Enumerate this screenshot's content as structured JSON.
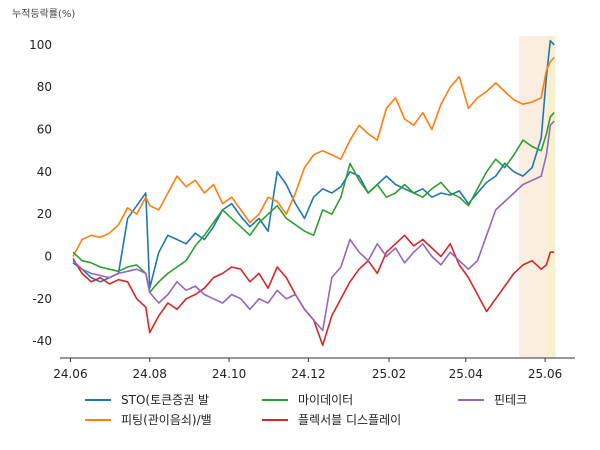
{
  "chart_data": {
    "type": "line",
    "title": "",
    "unit_label": "누적등락률(%)",
    "xlabel": "",
    "ylabel": "",
    "x_ticks": [
      "24.06",
      "24.08",
      "24.10",
      "24.12",
      "25.02",
      "25.04",
      "25.06"
    ],
    "y_ticks": [
      -40,
      -20,
      0,
      20,
      40,
      60,
      80,
      100
    ],
    "ylim": [
      -48,
      108
    ],
    "xlim": [
      "2024-05-24",
      "2025-06-24"
    ],
    "grid": false,
    "legend_position": "bottom",
    "shaded_regions": [
      {
        "start": "2025-05-12",
        "end": "2025-06-02",
        "color": "#fbeee0"
      },
      {
        "start": "2025-06-02",
        "end": "2025-06-09",
        "color": "#f7f0cf"
      }
    ],
    "series": [
      {
        "name": "STO(토큰증권 발",
        "color": "#1f77b4",
        "points": [
          [
            "2024-06-03",
            -3
          ],
          [
            "2024-06-10",
            -6
          ],
          [
            "2024-06-17",
            -10
          ],
          [
            "2024-06-24",
            -12
          ],
          [
            "2024-07-01",
            -10
          ],
          [
            "2024-07-08",
            -8
          ],
          [
            "2024-07-15",
            18
          ],
          [
            "2024-07-22",
            24
          ],
          [
            "2024-07-29",
            30
          ],
          [
            "2024-08-01",
            -15
          ],
          [
            "2024-08-08",
            2
          ],
          [
            "2024-08-15",
            10
          ],
          [
            "2024-08-22",
            8
          ],
          [
            "2024-08-29",
            6
          ],
          [
            "2024-09-05",
            11
          ],
          [
            "2024-09-12",
            8
          ],
          [
            "2024-09-19",
            14
          ],
          [
            "2024-09-26",
            22
          ],
          [
            "2024-10-03",
            25
          ],
          [
            "2024-10-10",
            19
          ],
          [
            "2024-10-17",
            14
          ],
          [
            "2024-10-24",
            18
          ],
          [
            "2024-10-31",
            12
          ],
          [
            "2024-11-07",
            40
          ],
          [
            "2024-11-14",
            34
          ],
          [
            "2024-11-21",
            25
          ],
          [
            "2024-11-28",
            18
          ],
          [
            "2024-12-05",
            28
          ],
          [
            "2024-12-12",
            32
          ],
          [
            "2024-12-19",
            30
          ],
          [
            "2024-12-26",
            33
          ],
          [
            "2025-01-02",
            40
          ],
          [
            "2025-01-09",
            38
          ],
          [
            "2025-01-16",
            30
          ],
          [
            "2025-01-23",
            34
          ],
          [
            "2025-01-30",
            38
          ],
          [
            "2025-02-06",
            34
          ],
          [
            "2025-02-13",
            32
          ],
          [
            "2025-02-20",
            30
          ],
          [
            "2025-02-27",
            32
          ],
          [
            "2025-03-06",
            28
          ],
          [
            "2025-03-13",
            30
          ],
          [
            "2025-03-20",
            29
          ],
          [
            "2025-03-27",
            31
          ],
          [
            "2025-04-03",
            25
          ],
          [
            "2025-04-10",
            30
          ],
          [
            "2025-04-17",
            35
          ],
          [
            "2025-04-24",
            38
          ],
          [
            "2025-05-01",
            44
          ],
          [
            "2025-05-08",
            40
          ],
          [
            "2025-05-15",
            38
          ],
          [
            "2025-05-22",
            42
          ],
          [
            "2025-05-29",
            56
          ],
          [
            "2025-06-02",
            85
          ],
          [
            "2025-06-05",
            102
          ],
          [
            "2025-06-08",
            100
          ]
        ]
      },
      {
        "name": "피팅(관이음쇠)/밸",
        "color": "#ff7f0e",
        "points": [
          [
            "2024-06-03",
            0
          ],
          [
            "2024-06-10",
            8
          ],
          [
            "2024-06-17",
            10
          ],
          [
            "2024-06-24",
            9
          ],
          [
            "2024-07-01",
            11
          ],
          [
            "2024-07-08",
            15
          ],
          [
            "2024-07-15",
            23
          ],
          [
            "2024-07-22",
            20
          ],
          [
            "2024-07-29",
            28
          ],
          [
            "2024-08-01",
            24
          ],
          [
            "2024-08-08",
            22
          ],
          [
            "2024-08-15",
            30
          ],
          [
            "2024-08-22",
            38
          ],
          [
            "2024-08-29",
            33
          ],
          [
            "2024-09-05",
            36
          ],
          [
            "2024-09-12",
            30
          ],
          [
            "2024-09-19",
            34
          ],
          [
            "2024-09-26",
            25
          ],
          [
            "2024-10-03",
            28
          ],
          [
            "2024-10-10",
            22
          ],
          [
            "2024-10-17",
            16
          ],
          [
            "2024-10-24",
            20
          ],
          [
            "2024-10-31",
            28
          ],
          [
            "2024-11-07",
            26
          ],
          [
            "2024-11-14",
            20
          ],
          [
            "2024-11-21",
            30
          ],
          [
            "2024-11-28",
            42
          ],
          [
            "2024-12-05",
            48
          ],
          [
            "2024-12-12",
            50
          ],
          [
            "2024-12-19",
            48
          ],
          [
            "2024-12-26",
            46
          ],
          [
            "2025-01-02",
            55
          ],
          [
            "2025-01-09",
            62
          ],
          [
            "2025-01-16",
            58
          ],
          [
            "2025-01-23",
            55
          ],
          [
            "2025-01-30",
            70
          ],
          [
            "2025-02-06",
            75
          ],
          [
            "2025-02-13",
            65
          ],
          [
            "2025-02-20",
            62
          ],
          [
            "2025-02-27",
            68
          ],
          [
            "2025-03-06",
            60
          ],
          [
            "2025-03-13",
            72
          ],
          [
            "2025-03-20",
            80
          ],
          [
            "2025-03-27",
            85
          ],
          [
            "2025-04-03",
            70
          ],
          [
            "2025-04-10",
            75
          ],
          [
            "2025-04-17",
            78
          ],
          [
            "2025-04-24",
            82
          ],
          [
            "2025-05-01",
            78
          ],
          [
            "2025-05-08",
            74
          ],
          [
            "2025-05-15",
            72
          ],
          [
            "2025-05-22",
            73
          ],
          [
            "2025-05-29",
            75
          ],
          [
            "2025-06-02",
            88
          ],
          [
            "2025-06-05",
            92
          ],
          [
            "2025-06-08",
            94
          ]
        ]
      },
      {
        "name": "마이데이터",
        "color": "#2ca02c",
        "points": [
          [
            "2024-06-03",
            2
          ],
          [
            "2024-06-10",
            -2
          ],
          [
            "2024-06-17",
            -3
          ],
          [
            "2024-06-24",
            -5
          ],
          [
            "2024-07-01",
            -6
          ],
          [
            "2024-07-08",
            -7
          ],
          [
            "2024-07-15",
            -5
          ],
          [
            "2024-07-22",
            -4
          ],
          [
            "2024-07-29",
            -8
          ],
          [
            "2024-08-01",
            -17
          ],
          [
            "2024-08-08",
            -12
          ],
          [
            "2024-08-15",
            -8
          ],
          [
            "2024-08-22",
            -5
          ],
          [
            "2024-08-29",
            -2
          ],
          [
            "2024-09-05",
            5
          ],
          [
            "2024-09-12",
            10
          ],
          [
            "2024-09-19",
            16
          ],
          [
            "2024-09-26",
            22
          ],
          [
            "2024-10-03",
            18
          ],
          [
            "2024-10-10",
            14
          ],
          [
            "2024-10-17",
            10
          ],
          [
            "2024-10-24",
            16
          ],
          [
            "2024-10-31",
            20
          ],
          [
            "2024-11-07",
            24
          ],
          [
            "2024-11-14",
            18
          ],
          [
            "2024-11-21",
            15
          ],
          [
            "2024-11-28",
            12
          ],
          [
            "2024-12-05",
            10
          ],
          [
            "2024-12-12",
            22
          ],
          [
            "2024-12-19",
            20
          ],
          [
            "2024-12-26",
            28
          ],
          [
            "2025-01-02",
            44
          ],
          [
            "2025-01-09",
            36
          ],
          [
            "2025-01-16",
            30
          ],
          [
            "2025-01-23",
            34
          ],
          [
            "2025-01-30",
            28
          ],
          [
            "2025-02-06",
            30
          ],
          [
            "2025-02-13",
            34
          ],
          [
            "2025-02-20",
            30
          ],
          [
            "2025-02-27",
            28
          ],
          [
            "2025-03-06",
            32
          ],
          [
            "2025-03-13",
            35
          ],
          [
            "2025-03-20",
            30
          ],
          [
            "2025-03-27",
            28
          ],
          [
            "2025-04-03",
            24
          ],
          [
            "2025-04-10",
            32
          ],
          [
            "2025-04-17",
            40
          ],
          [
            "2025-04-24",
            46
          ],
          [
            "2025-05-01",
            42
          ],
          [
            "2025-05-08",
            48
          ],
          [
            "2025-05-15",
            55
          ],
          [
            "2025-05-22",
            52
          ],
          [
            "2025-05-29",
            50
          ],
          [
            "2025-06-02",
            58
          ],
          [
            "2025-06-05",
            66
          ],
          [
            "2025-06-08",
            68
          ]
        ]
      },
      {
        "name": "플렉서블 디스플레이",
        "color": "#d62728",
        "points": [
          [
            "2024-06-03",
            -1
          ],
          [
            "2024-06-10",
            -8
          ],
          [
            "2024-06-17",
            -12
          ],
          [
            "2024-06-24",
            -10
          ],
          [
            "2024-07-01",
            -13
          ],
          [
            "2024-07-08",
            -11
          ],
          [
            "2024-07-15",
            -12
          ],
          [
            "2024-07-22",
            -20
          ],
          [
            "2024-07-29",
            -24
          ],
          [
            "2024-08-01",
            -36
          ],
          [
            "2024-08-08",
            -28
          ],
          [
            "2024-08-15",
            -22
          ],
          [
            "2024-08-22",
            -25
          ],
          [
            "2024-08-29",
            -20
          ],
          [
            "2024-09-05",
            -18
          ],
          [
            "2024-09-12",
            -15
          ],
          [
            "2024-09-19",
            -10
          ],
          [
            "2024-09-26",
            -8
          ],
          [
            "2024-10-03",
            -5
          ],
          [
            "2024-10-10",
            -6
          ],
          [
            "2024-10-17",
            -12
          ],
          [
            "2024-10-24",
            -8
          ],
          [
            "2024-10-31",
            -15
          ],
          [
            "2024-11-07",
            -5
          ],
          [
            "2024-11-14",
            -10
          ],
          [
            "2024-11-21",
            -18
          ],
          [
            "2024-11-28",
            -25
          ],
          [
            "2024-12-05",
            -30
          ],
          [
            "2024-12-12",
            -42
          ],
          [
            "2024-12-19",
            -28
          ],
          [
            "2024-12-26",
            -20
          ],
          [
            "2025-01-02",
            -12
          ],
          [
            "2025-01-09",
            -6
          ],
          [
            "2025-01-16",
            -2
          ],
          [
            "2025-01-23",
            -8
          ],
          [
            "2025-01-30",
            2
          ],
          [
            "2025-02-06",
            6
          ],
          [
            "2025-02-13",
            10
          ],
          [
            "2025-02-20",
            5
          ],
          [
            "2025-02-27",
            8
          ],
          [
            "2025-03-06",
            4
          ],
          [
            "2025-03-13",
            0
          ],
          [
            "2025-03-20",
            6
          ],
          [
            "2025-03-27",
            -4
          ],
          [
            "2025-04-03",
            -10
          ],
          [
            "2025-04-10",
            -18
          ],
          [
            "2025-04-17",
            -26
          ],
          [
            "2025-04-24",
            -20
          ],
          [
            "2025-05-01",
            -14
          ],
          [
            "2025-05-08",
            -8
          ],
          [
            "2025-05-15",
            -4
          ],
          [
            "2025-05-22",
            -2
          ],
          [
            "2025-05-29",
            -6
          ],
          [
            "2025-06-02",
            -4
          ],
          [
            "2025-06-05",
            2
          ],
          [
            "2025-06-08",
            2
          ]
        ]
      },
      {
        "name": "핀테크",
        "color": "#9467bd",
        "points": [
          [
            "2024-06-03",
            -2
          ],
          [
            "2024-06-10",
            -6
          ],
          [
            "2024-06-17",
            -8
          ],
          [
            "2024-06-24",
            -9
          ],
          [
            "2024-07-01",
            -10
          ],
          [
            "2024-07-08",
            -8
          ],
          [
            "2024-07-15",
            -7
          ],
          [
            "2024-07-22",
            -6
          ],
          [
            "2024-07-29",
            -8
          ],
          [
            "2024-08-01",
            -17
          ],
          [
            "2024-08-08",
            -22
          ],
          [
            "2024-08-15",
            -18
          ],
          [
            "2024-08-22",
            -12
          ],
          [
            "2024-08-29",
            -16
          ],
          [
            "2024-09-05",
            -14
          ],
          [
            "2024-09-12",
            -18
          ],
          [
            "2024-09-19",
            -20
          ],
          [
            "2024-09-26",
            -22
          ],
          [
            "2024-10-03",
            -18
          ],
          [
            "2024-10-10",
            -20
          ],
          [
            "2024-10-17",
            -25
          ],
          [
            "2024-10-24",
            -20
          ],
          [
            "2024-10-31",
            -22
          ],
          [
            "2024-11-07",
            -16
          ],
          [
            "2024-11-14",
            -20
          ],
          [
            "2024-11-21",
            -18
          ],
          [
            "2024-11-28",
            -25
          ],
          [
            "2024-12-05",
            -30
          ],
          [
            "2024-12-12",
            -35
          ],
          [
            "2024-12-19",
            -10
          ],
          [
            "2024-12-26",
            -5
          ],
          [
            "2025-01-02",
            8
          ],
          [
            "2025-01-09",
            2
          ],
          [
            "2025-01-16",
            -2
          ],
          [
            "2025-01-23",
            6
          ],
          [
            "2025-01-30",
            0
          ],
          [
            "2025-02-06",
            4
          ],
          [
            "2025-02-13",
            -3
          ],
          [
            "2025-02-20",
            2
          ],
          [
            "2025-02-27",
            6
          ],
          [
            "2025-03-06",
            0
          ],
          [
            "2025-03-13",
            -4
          ],
          [
            "2025-03-20",
            2
          ],
          [
            "2025-03-27",
            -2
          ],
          [
            "2025-04-03",
            -6
          ],
          [
            "2025-04-10",
            -2
          ],
          [
            "2025-04-17",
            10
          ],
          [
            "2025-04-24",
            22
          ],
          [
            "2025-05-01",
            26
          ],
          [
            "2025-05-08",
            30
          ],
          [
            "2025-05-15",
            34
          ],
          [
            "2025-05-22",
            36
          ],
          [
            "2025-05-29",
            38
          ],
          [
            "2025-06-02",
            48
          ],
          [
            "2025-06-05",
            62
          ],
          [
            "2025-06-08",
            64
          ]
        ]
      }
    ]
  }
}
